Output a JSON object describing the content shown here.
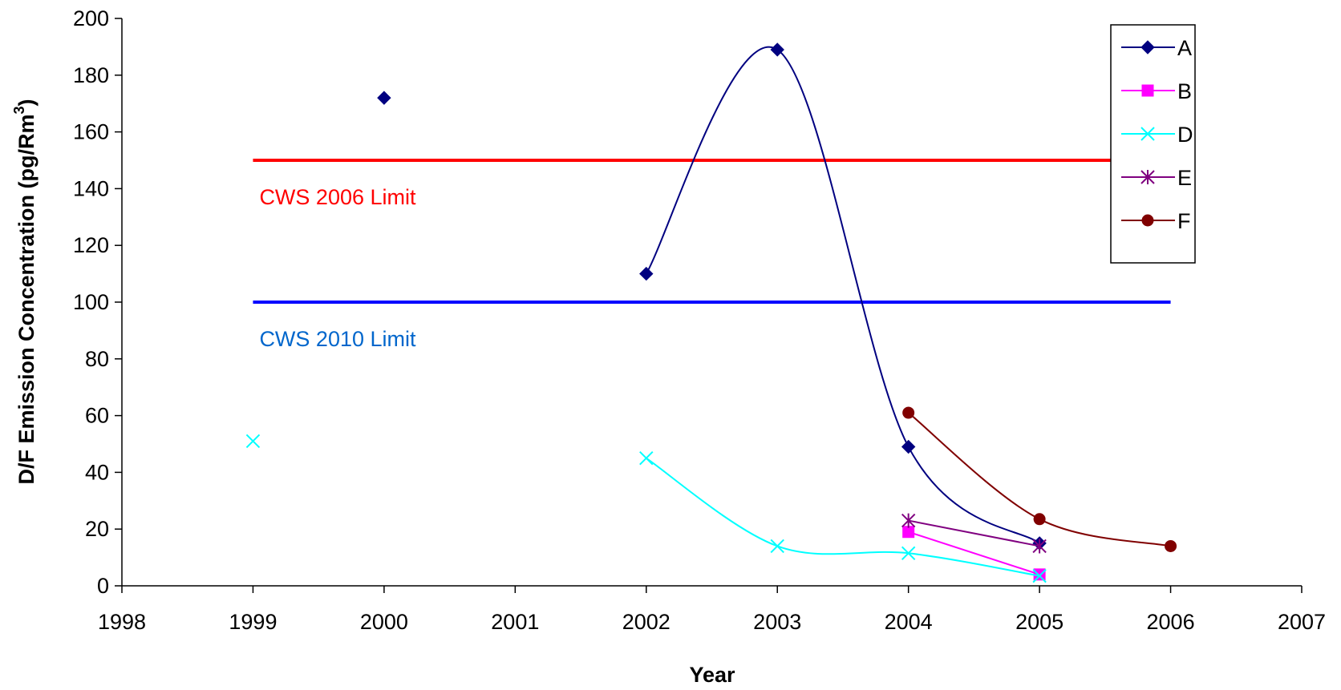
{
  "chart_data": {
    "type": "line",
    "xlabel": "Year",
    "ylabel": "D/F Emission Concentration (pg/Rm",
    "ylabel_superscript": "3",
    "ylabel_close": ")",
    "xlim": [
      1998,
      2007
    ],
    "ylim": [
      0,
      200
    ],
    "x_ticks": [
      "1998",
      "1999",
      "2000",
      "2001",
      "2002",
      "2003",
      "2004",
      "2005",
      "2006",
      "2007"
    ],
    "y_ticks": [
      "0",
      "20",
      "40",
      "60",
      "80",
      "100",
      "120",
      "140",
      "160",
      "180",
      "200"
    ],
    "grid": false,
    "legend_position": "top-right",
    "series": [
      {
        "name": "A",
        "color": "#000080",
        "marker": "diamond",
        "points": [
          [
            2000,
            172
          ]
        ],
        "line_points": [
          [
            2002,
            110
          ],
          [
            2003,
            189
          ],
          [
            2004,
            49
          ],
          [
            2005,
            15
          ]
        ]
      },
      {
        "name": "B",
        "color": "#ff00ff",
        "marker": "square",
        "points": [],
        "line_points": [
          [
            2004,
            19
          ],
          [
            2005,
            4
          ]
        ]
      },
      {
        "name": "D",
        "color": "#00ffff",
        "marker": "x",
        "points": [
          [
            1999,
            51
          ]
        ],
        "line_points": [
          [
            2002,
            45
          ],
          [
            2003,
            14
          ],
          [
            2004,
            11.5
          ],
          [
            2005,
            3.5
          ]
        ]
      },
      {
        "name": "E",
        "color": "#800080",
        "marker": "star",
        "points": [],
        "line_points": [
          [
            2004,
            23
          ],
          [
            2005,
            14
          ]
        ]
      },
      {
        "name": "F",
        "color": "#800000",
        "marker": "circle",
        "points": [],
        "line_points": [
          [
            2004,
            61
          ],
          [
            2005,
            23.5
          ],
          [
            2006,
            14
          ]
        ]
      }
    ],
    "reference_lines": [
      {
        "label": "CWS 2006 Limit",
        "y": 150,
        "x_range": [
          1999,
          2006
        ],
        "color": "#ff0000",
        "label_color": "#ff0000"
      },
      {
        "label": "CWS 2010 Limit",
        "y": 100,
        "x_range": [
          1999,
          2006
        ],
        "color": "#0000ff",
        "label_color": "#0066cc"
      }
    ]
  }
}
